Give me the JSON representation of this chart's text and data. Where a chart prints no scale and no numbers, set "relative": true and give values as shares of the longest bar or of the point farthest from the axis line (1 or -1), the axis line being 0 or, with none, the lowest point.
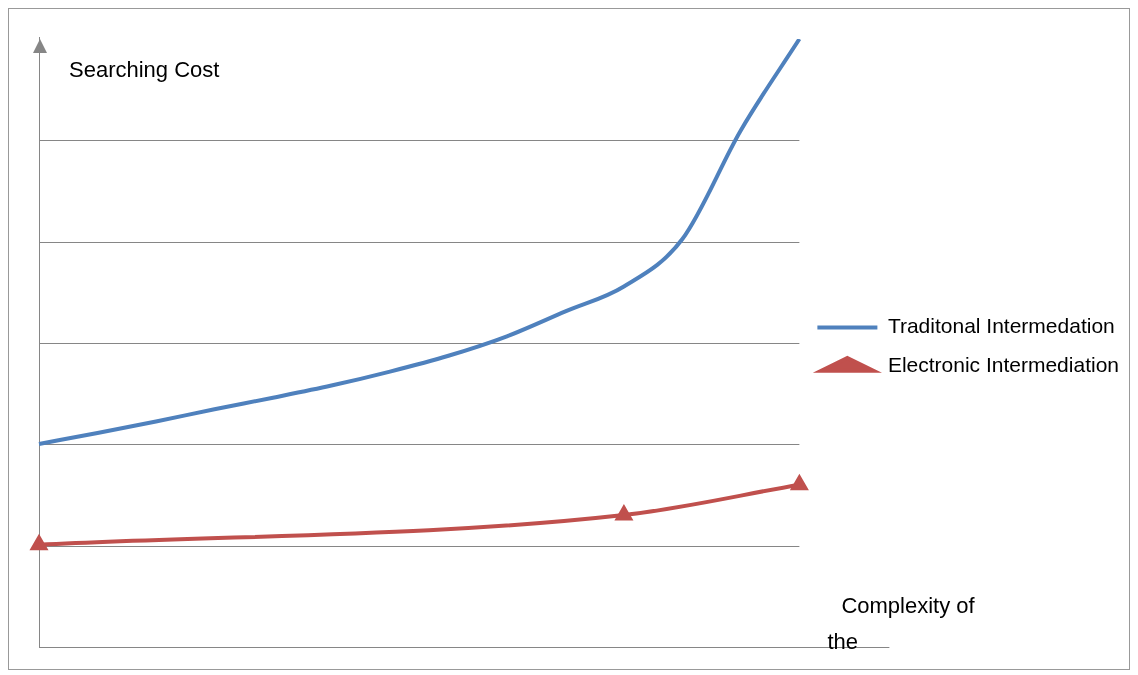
{
  "chart_data": {
    "type": "line",
    "relative": true,
    "xlabel": "Complexity of the",
    "ylabel": "Searching Cost",
    "grid": "y",
    "legend": "right",
    "categories": [
      null,
      null,
      null,
      null,
      null,
      null,
      null,
      null,
      null,
      null,
      null,
      null,
      null,
      null
    ],
    "series": [
      {
        "name": "Traditonal Intermedation",
        "color": "#4f81bd",
        "marker": "none",
        "values": [
          0.334,
          0.352,
          0.371,
          0.391,
          0.41,
          0.43,
          0.453,
          0.479,
          0.511,
          0.552,
          0.593,
          0.671,
          0.85,
          1
        ]
      },
      {
        "name": "Electronic Intermediation",
        "color": "#c0504d",
        "marker": "triangle",
        "values": [
          0.168,
          null,
          null,
          null,
          null,
          null,
          null,
          null,
          null,
          null,
          0.217,
          null,
          null,
          0.267
        ]
      }
    ]
  }
}
